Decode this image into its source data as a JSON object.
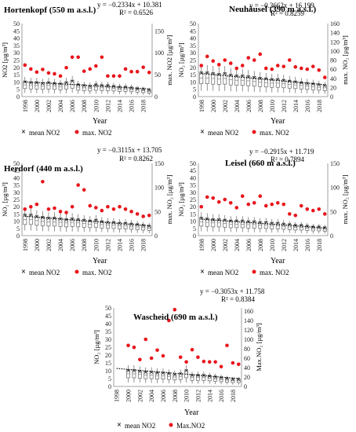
{
  "chart_data": [
    {
      "type": "box+scatter",
      "title": "Hortenkopf (550 m a.s.l.)",
      "equation": "y = −0.2334x + 10.381",
      "r2": "R² = 0.6526",
      "ylabel_left": "NO2 [µg/m³]",
      "ylabel_right": "max. NO2 [µg/m³]",
      "xlabel": "Year",
      "ylim_left": [
        0,
        50
      ],
      "yticks_left": [
        0,
        5,
        10,
        15,
        20,
        25,
        30,
        35,
        40,
        45,
        50
      ],
      "ylim_right": [
        0,
        166.67
      ],
      "yticks_right": [
        0,
        50,
        100,
        150
      ],
      "xticks": [
        "1998",
        "2000",
        "2002",
        "2004",
        "2006",
        "2008",
        "2010",
        "2012",
        "2014",
        "2016",
        "2018"
      ],
      "years": [
        1998,
        1999,
        2000,
        2001,
        2002,
        2003,
        2004,
        2005,
        2006,
        2007,
        2008,
        2009,
        2010,
        2011,
        2012,
        2013,
        2014,
        2015,
        2016,
        2017,
        2018,
        2019
      ],
      "trend": {
        "slope": -0.2334,
        "intercept": 10.381
      },
      "legend": [
        "mean NO2",
        "max. NO2"
      ],
      "series": [
        {
          "name": "mean NO2",
          "values": [
            10,
            9.5,
            9.5,
            9,
            9.5,
            9,
            8.5,
            9.5,
            10.5,
            8,
            7.5,
            7,
            8,
            7.5,
            7.5,
            7,
            6.5,
            6.5,
            6,
            5.5,
            5,
            4.5
          ]
        },
        {
          "name": "max. NO2",
          "values": [
            72,
            63,
            56,
            62,
            54,
            52,
            47,
            66,
            90,
            90,
            58,
            63,
            70,
            90,
            47,
            47,
            47,
            63,
            57,
            57,
            67,
            55
          ]
        }
      ]
    },
    {
      "type": "box+scatter",
      "title": "Neuhäusel (390 m a.s.l.)",
      "equation": "y = −0.3662x + 16.199",
      "r2": "R² = 0.8259",
      "ylabel_left": "NO₂ [µg/m³]",
      "ylabel_right": "max. NO₂ [µg/m³]",
      "xlabel": "Year",
      "ylim_left": [
        0,
        50
      ],
      "yticks_left": [
        0,
        5,
        10,
        15,
        20,
        25,
        30,
        35,
        40,
        45,
        50
      ],
      "ylim_right": [
        0,
        160
      ],
      "yticks_right": [
        0,
        20,
        40,
        60,
        80,
        100,
        120,
        140,
        160
      ],
      "xticks": [
        "1998",
        "2000",
        "2002",
        "2004",
        "2006",
        "2008",
        "2010",
        "2012",
        "2014",
        "2016",
        "2018"
      ],
      "years": [
        1998,
        1999,
        2000,
        2001,
        2002,
        2003,
        2004,
        2005,
        2006,
        2007,
        2008,
        2009,
        2010,
        2011,
        2012,
        2013,
        2014,
        2015,
        2016,
        2017,
        2018,
        2019
      ],
      "trend": {
        "slope": -0.3662,
        "intercept": 16.199
      },
      "legend": [
        "mean NO2",
        "max. NO2"
      ],
      "series": [
        {
          "name": "mean NO2",
          "values": [
            16,
            16,
            15.5,
            15,
            15.5,
            14.5,
            14,
            14,
            13.5,
            13,
            12.5,
            12,
            11.5,
            11.5,
            11,
            10.5,
            10,
            9.5,
            9,
            8.5,
            8,
            7.5
          ]
        },
        {
          "name": "max. NO2",
          "values": [
            68,
            88,
            78,
            70,
            80,
            73,
            62,
            68,
            85,
            80,
            93,
            62,
            60,
            68,
            66,
            80,
            65,
            62,
            60,
            66,
            58,
            42
          ]
        }
      ]
    },
    {
      "type": "box+scatter",
      "title": "Herdorf (440 m a.s.l.)",
      "equation": "y = −0.3115x + 13.705",
      "r2": "R² = 0.8262",
      "ylabel_left": "NO₂ [µg/m³]",
      "ylabel_right": "max. NO₂ [µg/m³]",
      "xlabel": "Year",
      "ylim_left": [
        0,
        50
      ],
      "yticks_left": [
        0,
        5,
        10,
        15,
        20,
        25,
        30,
        35,
        40,
        45,
        50
      ],
      "ylim_right": [
        0,
        150
      ],
      "yticks_right": [
        0,
        50,
        100,
        150
      ],
      "xticks": [
        "1998",
        "2000",
        "2002",
        "2004",
        "2006",
        "2008",
        "2010",
        "2012",
        "2014",
        "2016",
        "2018"
      ],
      "years": [
        1998,
        1999,
        2000,
        2001,
        2002,
        2003,
        2004,
        2005,
        2006,
        2007,
        2008,
        2009,
        2010,
        2011,
        2012,
        2013,
        2014,
        2015,
        2016,
        2017,
        2018,
        2019
      ],
      "trend": {
        "slope": -0.3115,
        "intercept": 13.705
      },
      "legend": [
        "mean NO2",
        "max. NO2"
      ],
      "series": [
        {
          "name": "mean NO2",
          "values": [
            14,
            14,
            13,
            12.5,
            12,
            12,
            11.5,
            11,
            11.5,
            11,
            10.5,
            10,
            10.5,
            9.5,
            9,
            9,
            8.5,
            8.5,
            8,
            7.5,
            7,
            6.5
          ]
        },
        {
          "name": "max. NO2",
          "values": [
            55,
            60,
            65,
            112,
            55,
            57,
            50,
            48,
            60,
            105,
            95,
            62,
            58,
            52,
            60,
            55,
            60,
            55,
            50,
            45,
            40,
            42
          ]
        }
      ]
    },
    {
      "type": "box+scatter",
      "title": "Leisel (660 m a.s.l.)",
      "equation": "y = −0.2915x + 11.719",
      "r2": "R² = 0.7894",
      "ylabel_left": "NO₂ [µg/m³]",
      "ylabel_right": "max. NO₂ [µg/m³]",
      "xlabel": "Year",
      "ylim_left": [
        0,
        50
      ],
      "yticks_left": [
        0,
        5,
        10,
        15,
        20,
        25,
        30,
        35,
        40,
        45,
        50
      ],
      "ylim_right": [
        0,
        150
      ],
      "yticks_right": [
        0,
        50,
        100,
        150
      ],
      "xticks": [
        "1998",
        "2000",
        "2002",
        "2004",
        "2006",
        "2008",
        "2010",
        "2012",
        "2014",
        "2016",
        "2018"
      ],
      "years": [
        1998,
        1999,
        2000,
        2001,
        2002,
        2003,
        2004,
        2005,
        2006,
        2007,
        2008,
        2009,
        2010,
        2011,
        2012,
        2013,
        2014,
        2015,
        2016,
        2017,
        2018,
        2019
      ],
      "trend": {
        "slope": -0.2915,
        "intercept": 11.719
      },
      "legend": [
        "mean NO2",
        "max. NO2"
      ],
      "series": [
        {
          "name": "mean NO2",
          "values": [
            12,
            11.5,
            11,
            11,
            10.5,
            10,
            10,
            10,
            9.5,
            9.5,
            9,
            9,
            8.5,
            8.5,
            8,
            7.5,
            7,
            7,
            6.5,
            6,
            6,
            5.5
          ]
        },
        {
          "name": "max. NO2",
          "values": [
            60,
            80,
            78,
            70,
            75,
            68,
            58,
            82,
            65,
            68,
            82,
            62,
            65,
            68,
            65,
            45,
            42,
            62,
            55,
            52,
            55,
            45
          ]
        }
      ]
    },
    {
      "type": "box+scatter",
      "title": "Wascheid (690 m a.s.l.)",
      "equation": "y = −0.3053x + 11.758",
      "r2": "R² = 0.8384",
      "ylabel_left": "NO₂ [µg/m³]",
      "ylabel_right": "Max.NO₂ [µg/m³]",
      "xlabel": "Year",
      "ylim_left": [
        0,
        50
      ],
      "yticks_left": [
        0,
        5,
        10,
        15,
        20,
        25,
        30,
        35,
        40,
        45,
        50
      ],
      "ylim_right": [
        0,
        166.67
      ],
      "yticks_right": [
        0,
        20,
        40,
        60,
        80,
        100,
        120,
        140,
        160
      ],
      "xticks": [
        "1998",
        "2000",
        "2002",
        "2004",
        "2006",
        "2008",
        "2010",
        "2012",
        "2014",
        "2016",
        "2018"
      ],
      "years": [
        2000,
        2001,
        2002,
        2003,
        2004,
        2005,
        2006,
        2007,
        2008,
        2009,
        2010,
        2011,
        2012,
        2013,
        2014,
        2015,
        2016,
        2017,
        2018,
        2019
      ],
      "trend": {
        "slope": -0.3053,
        "intercept": 11.758
      },
      "legend": [
        "mean NO2",
        "Max.NO2"
      ],
      "series": [
        {
          "name": "mean NO2",
          "values": [
            10,
            10,
            9.5,
            9,
            9,
            8.5,
            8.5,
            8,
            7.5,
            8,
            10,
            7,
            7,
            7,
            6.5,
            6,
            5.5,
            5,
            4.5,
            4.5
          ]
        },
        {
          "name": "Max.NO2",
          "values": [
            87,
            83,
            57,
            100,
            60,
            77,
            65,
            140,
            163,
            62,
            52,
            78,
            62,
            53,
            52,
            52,
            42,
            87,
            50,
            47
          ]
        }
      ]
    }
  ]
}
